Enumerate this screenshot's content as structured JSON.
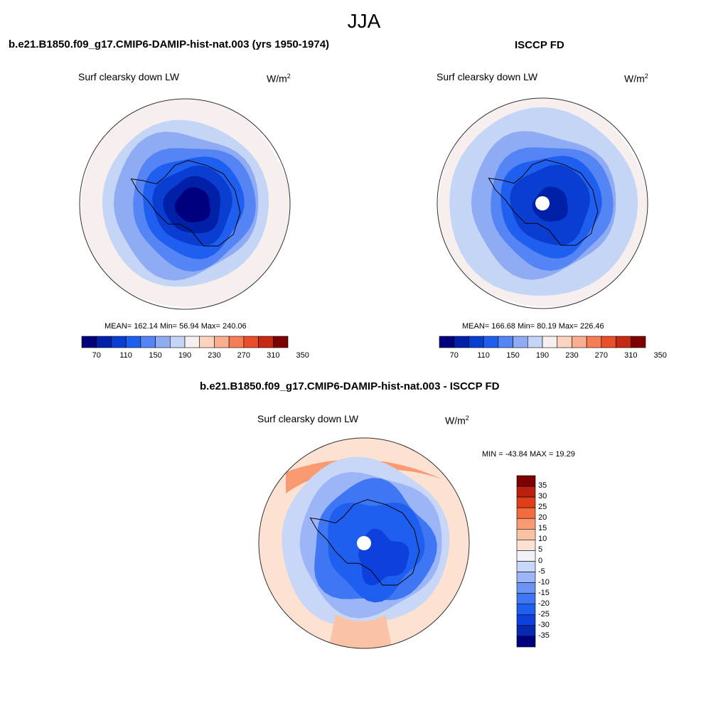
{
  "figure": {
    "season": "JJA",
    "colors": {
      "scale": [
        "#00007f",
        "#0020a8",
        "#0a3ed0",
        "#1f5ff0",
        "#5585f5",
        "#8fabf4",
        "#c4d5f6",
        "#f6efee",
        "#fbd3bf",
        "#f9ae8f",
        "#f57e55",
        "#e84e2a",
        "#c62a12",
        "#7f0000"
      ],
      "diff_scale": [
        "#00007f",
        "#0a28b4",
        "#0d40dc",
        "#1f5ff0",
        "#3f76f3",
        "#6b94f5",
        "#9bb5f6",
        "#c8d7f7",
        "#f0f2f8",
        "#fde2d2",
        "#fbc3a6",
        "#f99a72",
        "#f26b3d",
        "#e03e19",
        "#b81f0c",
        "#7f0000"
      ],
      "mask": "#ffffff",
      "coast": "#000000"
    }
  },
  "panels": [
    {
      "title": "b.e21.B1850.f09_g17.CMIP6-DAMIP-hist-nat.003 (yrs 1950-1974)",
      "variable": "Surf clearsky down LW",
      "units_base": "W/m",
      "units_exp": "2",
      "stats": "MEAN= 162.14  Min=  56.94  Max= 240.06",
      "colorbar_labels": [
        "70",
        "110",
        "150",
        "190",
        "230",
        "270",
        "310",
        "350"
      ],
      "rings": [
        7,
        7,
        6,
        5,
        4,
        3,
        2,
        1,
        0
      ],
      "has_mask": false
    },
    {
      "title": "ISCCP FD",
      "variable": "Surf clearsky down LW",
      "units_base": "W/m",
      "units_exp": "2",
      "stats": "MEAN= 166.68  Min=  80.19  Max= 226.46",
      "colorbar_labels": [
        "70",
        "110",
        "150",
        "190",
        "230",
        "270",
        "310",
        "350"
      ],
      "rings": [
        7,
        6,
        6,
        5,
        4,
        3,
        2,
        2,
        1
      ],
      "has_mask": true
    },
    {
      "title": "b.e21.B1850.f09_g17.CMIP6-DAMIP-hist-nat.003 - ISCCP FD",
      "variable": "Surf clearsky down LW",
      "units_base": "W/m",
      "units_exp": "2",
      "stats": "MIN = -43.84 MAX =  19.29",
      "colorbar_labels": [
        "35",
        "30",
        "25",
        "20",
        "15",
        "10",
        "5",
        "0",
        "-5",
        "-10",
        "-15",
        "-20",
        "-25",
        "-30",
        "-35"
      ],
      "has_mask": true
    }
  ]
}
